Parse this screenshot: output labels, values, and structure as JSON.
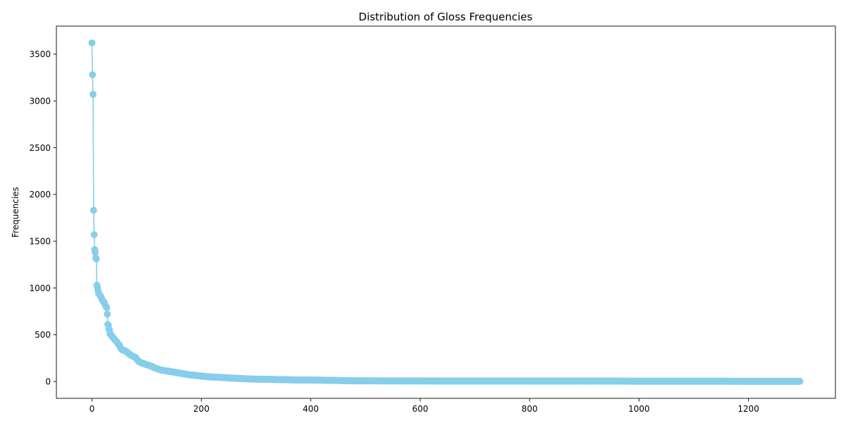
{
  "chart_data": {
    "type": "line",
    "title": "Distribution of Gloss Frequencies",
    "xlabel": "",
    "ylabel": "Frequencies",
    "xlim": [
      -65,
      1359
    ],
    "ylim": [
      -180,
      3800
    ],
    "x_ticks": [
      0,
      200,
      400,
      600,
      800,
      1000,
      1200
    ],
    "y_ticks": [
      0,
      500,
      1000,
      1500,
      2000,
      2500,
      3000,
      3500
    ],
    "x_tick_labels": [
      "0",
      "200",
      "400",
      "600",
      "800",
      "1000",
      "1200"
    ],
    "y_tick_labels": [
      "0",
      "500",
      "1000",
      "1500",
      "2000",
      "2500",
      "3000",
      "3500"
    ],
    "grid": false,
    "marker": "circle",
    "series": [
      {
        "color": "#87ceeb",
        "x_range": [
          0,
          1294
        ],
        "points": [
          [
            0,
            3620
          ],
          [
            1,
            3280
          ],
          [
            2,
            3070
          ],
          [
            3,
            1830
          ],
          [
            4,
            1570
          ],
          [
            5,
            1410
          ],
          [
            6,
            1380
          ],
          [
            7,
            1320
          ],
          [
            8,
            1310
          ],
          [
            9,
            1030
          ],
          [
            10,
            1010
          ],
          [
            12,
            940
          ],
          [
            14,
            930
          ],
          [
            16,
            910
          ],
          [
            18,
            880
          ],
          [
            20,
            860
          ],
          [
            22,
            850
          ],
          [
            24,
            820
          ],
          [
            26,
            800
          ],
          [
            27,
            790
          ],
          [
            28,
            720
          ],
          [
            29,
            610
          ],
          [
            30,
            600
          ],
          [
            31,
            560
          ],
          [
            32,
            550
          ],
          [
            33,
            510
          ],
          [
            35,
            500
          ],
          [
            37,
            480
          ],
          [
            40,
            460
          ],
          [
            43,
            440
          ],
          [
            46,
            420
          ],
          [
            48,
            400
          ],
          [
            50,
            390
          ],
          [
            52,
            360
          ],
          [
            55,
            340
          ],
          [
            60,
            330
          ],
          [
            65,
            310
          ],
          [
            70,
            285
          ],
          [
            75,
            270
          ],
          [
            80,
            255
          ],
          [
            85,
            215
          ],
          [
            90,
            200
          ],
          [
            95,
            190
          ],
          [
            100,
            180
          ],
          [
            105,
            170
          ],
          [
            110,
            160
          ],
          [
            115,
            145
          ],
          [
            120,
            135
          ],
          [
            125,
            125
          ],
          [
            130,
            118
          ],
          [
            140,
            110
          ],
          [
            150,
            100
          ],
          [
            160,
            90
          ],
          [
            170,
            80
          ],
          [
            180,
            70
          ],
          [
            190,
            65
          ],
          [
            200,
            58
          ],
          [
            210,
            52
          ],
          [
            220,
            48
          ],
          [
            230,
            45
          ],
          [
            240,
            42
          ],
          [
            250,
            38
          ],
          [
            260,
            35
          ],
          [
            270,
            32
          ],
          [
            280,
            29
          ],
          [
            290,
            27
          ],
          [
            300,
            25
          ],
          [
            320,
            23
          ],
          [
            340,
            21
          ],
          [
            360,
            18
          ],
          [
            380,
            16
          ],
          [
            400,
            15
          ],
          [
            420,
            14
          ],
          [
            440,
            12
          ],
          [
            455,
            10
          ],
          [
            460,
            8
          ],
          [
            480,
            7
          ],
          [
            500,
            7
          ],
          [
            550,
            6
          ],
          [
            600,
            6
          ],
          [
            650,
            5
          ],
          [
            700,
            5
          ],
          [
            750,
            5
          ],
          [
            800,
            4
          ],
          [
            850,
            4
          ],
          [
            900,
            4
          ],
          [
            950,
            4
          ],
          [
            1000,
            3
          ],
          [
            1050,
            3
          ],
          [
            1100,
            3
          ],
          [
            1150,
            3
          ],
          [
            1200,
            2
          ],
          [
            1250,
            2
          ],
          [
            1294,
            2
          ]
        ]
      }
    ]
  }
}
